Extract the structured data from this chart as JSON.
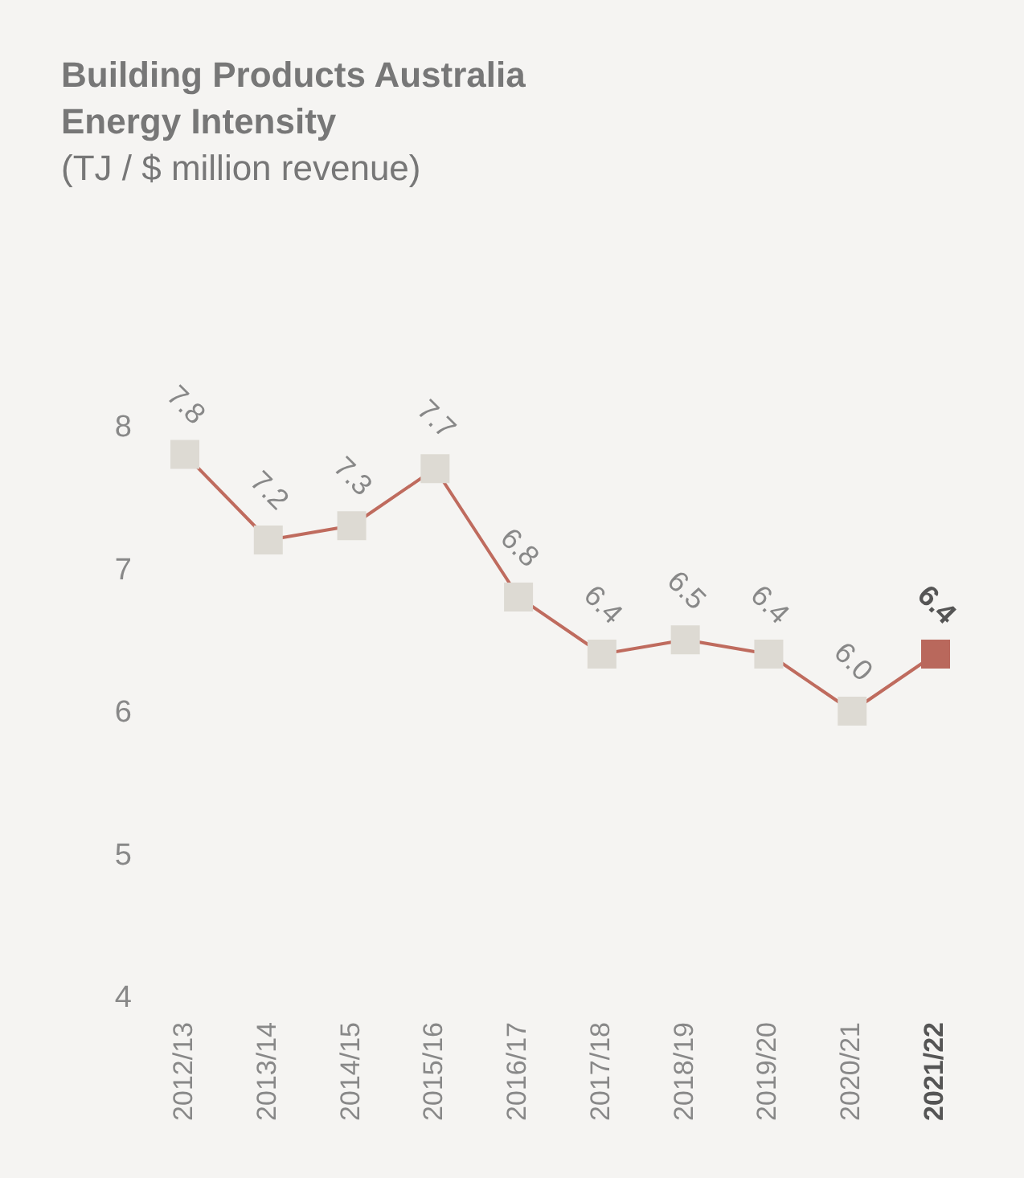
{
  "chart_data": {
    "type": "line",
    "title": "Building Products Australia\nEnergy Intensity",
    "subtitle": "(TJ / $ million revenue)",
    "categories": [
      "2012/13",
      "2013/14",
      "2014/15",
      "2015/16",
      "2016/17",
      "2017/18",
      "2018/19",
      "2019/20",
      "2020/21",
      "2021/22"
    ],
    "series": [
      {
        "color": "#bf6b5e",
        "values": [
          7.8,
          7.2,
          7.3,
          7.7,
          6.8,
          6.4,
          6.5,
          6.4,
          6.0,
          6.4
        ],
        "value_labels": [
          "7.8",
          "7.2",
          "7.3",
          "7.7",
          "6.8",
          "6.4",
          "6.5",
          "6.4",
          "6.0",
          "6.4"
        ],
        "colors": [
          "#dddad3",
          "#dddad3",
          "#dddad3",
          "#dddad3",
          "#dddad3",
          "#dddad3",
          "#dddad3",
          "#dddad3",
          "#dddad3",
          "#b9685c"
        ]
      }
    ],
    "ylim": [
      4,
      8
    ],
    "yticks": [
      4,
      5,
      6,
      7,
      8
    ],
    "grid": false,
    "legend": false,
    "marker": "square",
    "line_style": "solid"
  }
}
